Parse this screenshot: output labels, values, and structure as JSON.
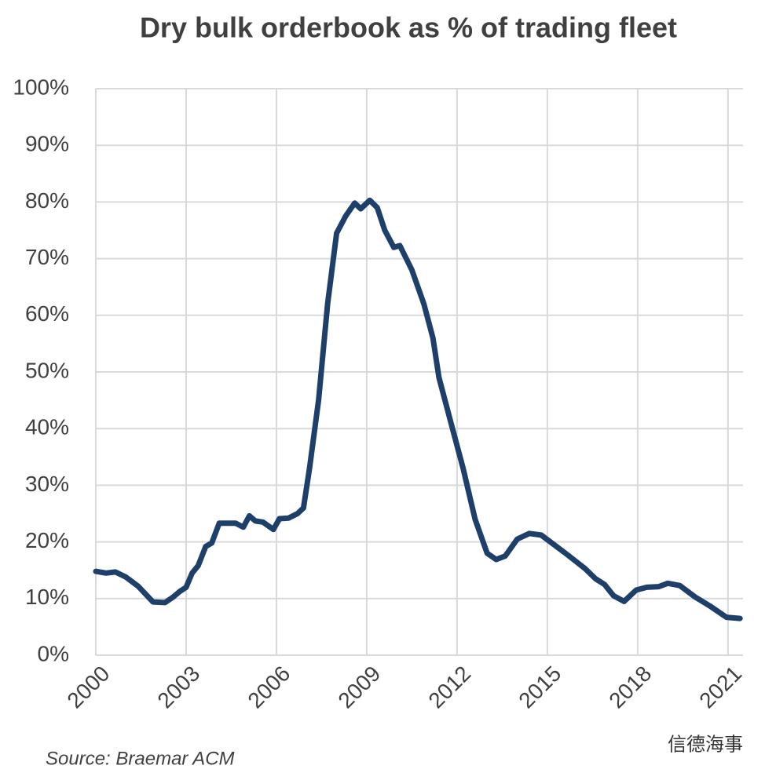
{
  "chart_data": {
    "type": "line",
    "title": "Dry bulk orderbook as % of trading fleet",
    "source": "Source: Braemar ACM",
    "watermark": "信德海事",
    "x": [
      2000,
      2000.34,
      2000.65,
      2001,
      2001.4,
      2001.9,
      2002.3,
      2002.55,
      2002.8,
      2003,
      2003.2,
      2003.4,
      2003.65,
      2003.85,
      2004.1,
      2004.65,
      2004.9,
      2005.1,
      2005.3,
      2005.55,
      2005.9,
      2006.1,
      2006.4,
      2006.7,
      2006.9,
      2007.1,
      2007.4,
      2007.7,
      2008.0,
      2008.3,
      2008.6,
      2008.8,
      2009.1,
      2009.35,
      2009.6,
      2009.9,
      2010.1,
      2010.5,
      2010.9,
      2011.2,
      2011.4,
      2011.8,
      2012.2,
      2012.6,
      2013.0,
      2013.3,
      2013.6,
      2014.0,
      2014.4,
      2014.8,
      2015.1,
      2015.6,
      2016.25,
      2016.6,
      2016.9,
      2017.2,
      2017.55,
      2017.95,
      2018.3,
      2018.7,
      2019.0,
      2019.4,
      2019.9,
      2020.4,
      2020.95,
      2021.4
    ],
    "series": [
      {
        "name": "Orderbook",
        "color": "#1f3f6b",
        "values": [
          14.8,
          14.5,
          14.7,
          13.8,
          12.2,
          9.4,
          9.3,
          10.2,
          11.3,
          12,
          14.5,
          15.8,
          19.2,
          19.8,
          23.3,
          23.3,
          22.6,
          24.6,
          23.7,
          23.5,
          22.2,
          24.1,
          24.2,
          25,
          26,
          33,
          45,
          62,
          74.5,
          77.5,
          79.8,
          78.8,
          80.3,
          79,
          75,
          72,
          72.3,
          68,
          62,
          56,
          49,
          41,
          33,
          24,
          18,
          16.9,
          17.5,
          20.5,
          21.5,
          21.2,
          20,
          18,
          15.3,
          13.5,
          12.5,
          10.5,
          9.5,
          11.5,
          12,
          12.1,
          12.7,
          12.3,
          10.3,
          8.7,
          6.7,
          6.5
        ]
      }
    ],
    "xlim": [
      2000,
      2021.5
    ],
    "xticks": [
      2000,
      2003,
      2006,
      2009,
      2012,
      2015,
      2018,
      2021
    ],
    "ylim": [
      0,
      100
    ],
    "yticks": [
      {
        "value": 0,
        "label": "0%"
      },
      {
        "value": 10,
        "label": "10%"
      },
      {
        "value": 20,
        "label": "20%"
      },
      {
        "value": 30,
        "label": "30%"
      },
      {
        "value": 40,
        "label": "40%"
      },
      {
        "value": 50,
        "label": "50%"
      },
      {
        "value": 60,
        "label": "60%"
      },
      {
        "value": 70,
        "label": "70%"
      },
      {
        "value": 80,
        "label": "80%"
      },
      {
        "value": 90,
        "label": "90%"
      },
      {
        "value": 100,
        "label": "100%"
      }
    ],
    "grid": true
  }
}
